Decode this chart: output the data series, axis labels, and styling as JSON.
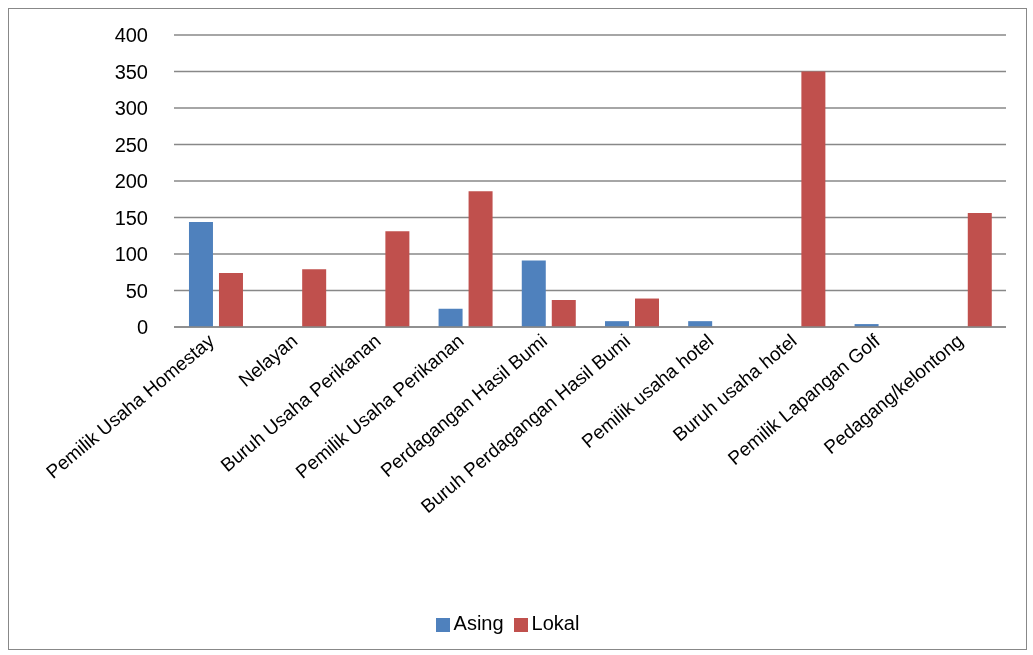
{
  "chart_data": {
    "type": "bar",
    "categories": [
      "Pemilik Usaha Homestay",
      "Nelayan",
      "Buruh Usaha Perikanan",
      "Pemilik Usaha Perikanan",
      "Perdagangan Hasil Bumi",
      "Buruh Perdagangan Hasil Bumi",
      "Pemilik usaha hotel",
      "Buruh usaha hotel",
      "Pemilik Lapangan Golf",
      "Pedagang/kelontong"
    ],
    "series": [
      {
        "name": "Asing",
        "color": "#4f81bd",
        "values": [
          144,
          null,
          null,
          25,
          91,
          8,
          8,
          null,
          4,
          null
        ]
      },
      {
        "name": "Lokal",
        "color": "#c0504d",
        "values": [
          74,
          79,
          131,
          186,
          37,
          39,
          null,
          350,
          null,
          156
        ]
      }
    ],
    "ylim": [
      0,
      400
    ],
    "yticks": [
      0,
      50,
      100,
      150,
      200,
      250,
      300,
      350,
      400
    ],
    "grid": "y",
    "legend": "bottom"
  }
}
